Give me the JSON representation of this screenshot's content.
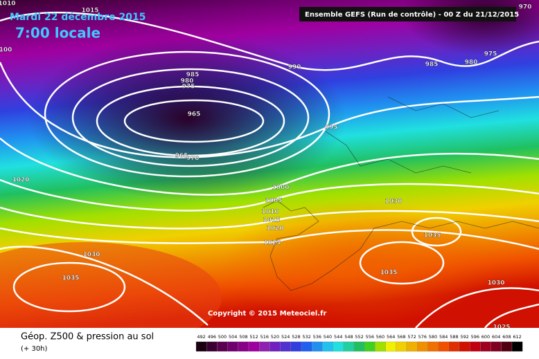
{
  "header": {
    "date": "Mardi 22 décembre 2015",
    "time": "7:00 locale",
    "run": "Ensemble GEFS  (Run de contrôle)  -  00 Z du 21/12/2015"
  },
  "map": {
    "copyright": "Copyright © 2015 Meteociel.fr",
    "isobar_labels": [
      1015,
      1010,
      970,
      975,
      980,
      985,
      990,
      985,
      980,
      975,
      965,
      965,
      970,
      995,
      1020,
      1000,
      1005,
      1010,
      1015,
      1020,
      1030,
      1025,
      1035,
      1030,
      1035,
      1035,
      1030,
      1025,
      100
    ]
  },
  "footer": {
    "product": "Géop. Z500 & pression au sol",
    "lead": "(+ 30h)"
  },
  "legend": {
    "ticks": [
      492,
      496,
      500,
      504,
      508,
      512,
      516,
      520,
      524,
      528,
      532,
      536,
      540,
      544,
      548,
      552,
      556,
      560,
      564,
      568,
      572,
      576,
      580,
      584,
      588,
      592,
      596,
      600,
      604,
      608,
      612
    ],
    "colors": [
      "#1a0010",
      "#3a0030",
      "#5a0050",
      "#700070",
      "#880088",
      "#a000a0",
      "#9020b0",
      "#7020c0",
      "#5030d0",
      "#3040e0",
      "#2060f0",
      "#2090f0",
      "#20c0f0",
      "#20e0e0",
      "#20d0a0",
      "#20c060",
      "#40d020",
      "#a0e000",
      "#f0f000",
      "#f0d000",
      "#f0b000",
      "#f09000",
      "#f07000",
      "#f05000",
      "#e03000",
      "#d01000",
      "#c00010",
      "#a00020",
      "#800020",
      "#500010",
      "#000000"
    ]
  }
}
